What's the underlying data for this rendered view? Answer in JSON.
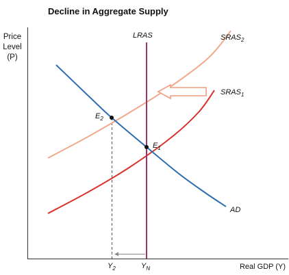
{
  "chart_data": {
    "type": "line",
    "title": "Decline in Aggregate Supply",
    "ylabel": {
      "line1": "Price",
      "line2": "Level",
      "line3": "(P)"
    },
    "xlabel": "Real GDP (Y)",
    "x_ticks": {
      "y2": {
        "base": "Y",
        "sub": "2"
      },
      "yn": {
        "base": "Y",
        "sub": "N"
      }
    },
    "series": [
      {
        "key": "sras2",
        "label_base": "SRAS",
        "label_sub": "2",
        "color": "#f1a98d",
        "points": [
          [
            70,
            231
          ],
          [
            130,
            199
          ],
          [
            190,
            164
          ],
          [
            250,
            126
          ],
          [
            305,
            84
          ],
          [
            337,
            45
          ]
        ]
      },
      {
        "key": "sras1",
        "label_base": "SRAS",
        "label_sub": "1",
        "color": "#d9312b",
        "points": [
          [
            70,
            312
          ],
          [
            130,
            280
          ],
          [
            190,
            244
          ],
          [
            250,
            201
          ],
          [
            290,
            164
          ],
          [
            313,
            132
          ]
        ]
      },
      {
        "key": "ad",
        "label_base": "AD",
        "label_sub": "",
        "color": "#2f6db1",
        "points": [
          [
            82,
            95
          ],
          [
            130,
            141
          ],
          [
            163,
            172
          ],
          [
            214,
            215
          ],
          [
            260,
            253
          ],
          [
            300,
            282
          ],
          [
            330,
            302
          ]
        ]
      },
      {
        "key": "lras",
        "label_base": "LRAS",
        "label_sub": "",
        "color": "#a3306b",
        "points": [
          [
            214,
            62
          ],
          [
            214,
            378
          ]
        ]
      }
    ],
    "equilibria": [
      {
        "key": "e2",
        "label_base": "E",
        "label_sub": "2",
        "x": 163,
        "y": 172
      },
      {
        "key": "e1",
        "label_base": "E",
        "label_sub": "1",
        "x": 214,
        "y": 215
      }
    ],
    "shift": {
      "direction": "left",
      "color": "#f29c7e"
    },
    "axis": {
      "xmin": 40,
      "xmax": 420,
      "ymin": 0,
      "ymax": 380
    },
    "grid": false
  }
}
